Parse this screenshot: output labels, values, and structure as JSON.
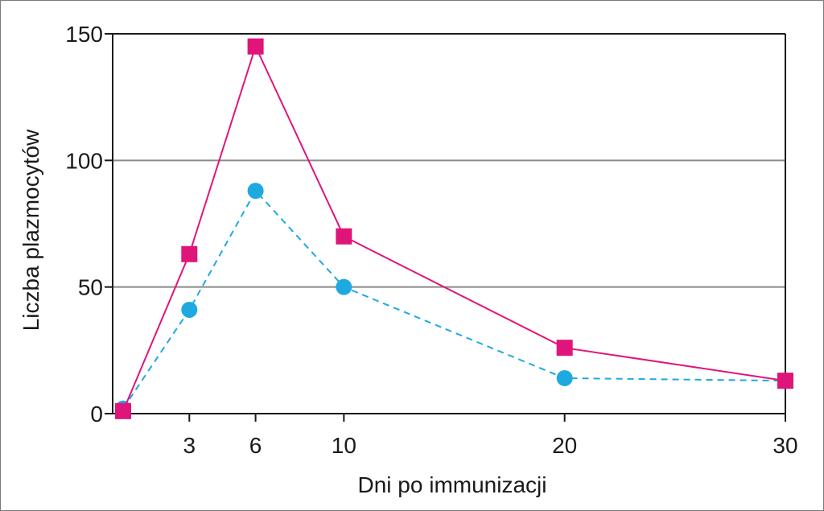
{
  "chart_data": {
    "type": "line",
    "title": "",
    "xlabel": "Dni po immunizacji",
    "ylabel": "Liczba plazmocytów",
    "x_ticks": [
      3,
      6,
      10,
      20,
      30
    ],
    "y_ticks": [
      0,
      50,
      100,
      150
    ],
    "xlim": [
      -1,
      30
    ],
    "ylim": [
      0,
      150
    ],
    "grid": "horizontal",
    "legend": "none",
    "series": [
      {
        "color": "#e0157a",
        "line_style": "solid",
        "marker": "square",
        "x": [
          0,
          3,
          6,
          10,
          20,
          30
        ],
        "y": [
          1,
          63,
          145,
          70,
          26,
          13
        ]
      },
      {
        "color": "#1ea9e1",
        "line_style": "dashed",
        "marker": "circle",
        "x": [
          0,
          3,
          6,
          10,
          20,
          30
        ],
        "y": [
          2,
          41,
          88,
          50,
          14,
          13
        ]
      }
    ]
  }
}
